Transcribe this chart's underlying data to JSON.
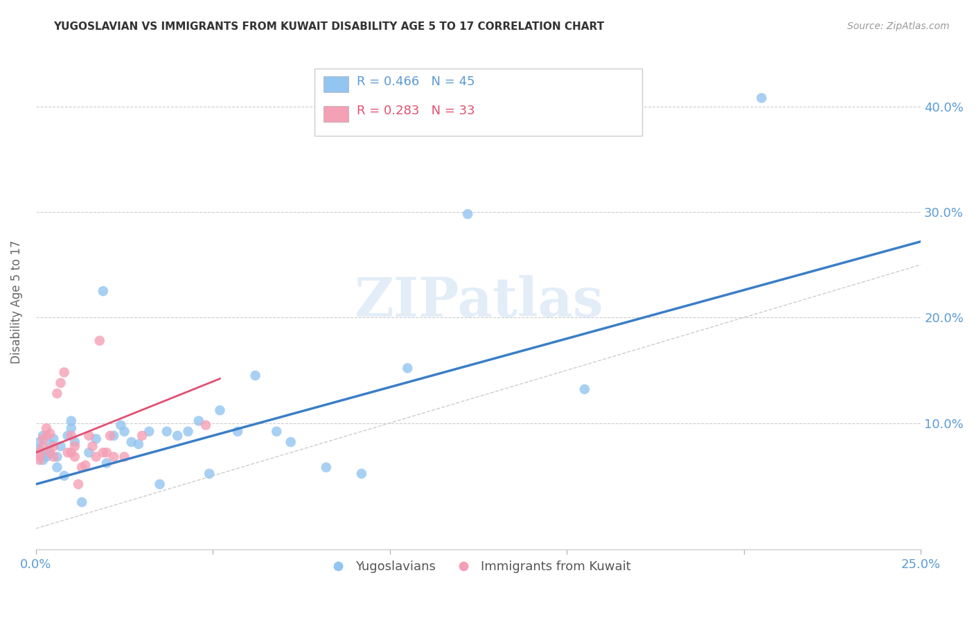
{
  "title": "YUGOSLAVIAN VS IMMIGRANTS FROM KUWAIT DISABILITY AGE 5 TO 17 CORRELATION CHART",
  "source": "Source: ZipAtlas.com",
  "ylabel": "Disability Age 5 to 17",
  "xlim": [
    0.0,
    0.25
  ],
  "ylim": [
    -0.02,
    0.45
  ],
  "xtick_positions": [
    0.0,
    0.05,
    0.1,
    0.15,
    0.2,
    0.25
  ],
  "xtick_labels": [
    "0.0%",
    "",
    "",
    "",
    "",
    "25.0%"
  ],
  "ytick_positions": [
    0.1,
    0.2,
    0.3,
    0.4
  ],
  "ytick_labels": [
    "10.0%",
    "20.0%",
    "30.0%",
    "40.0%"
  ],
  "legend_blue_label": "R = 0.466   N = 45",
  "legend_pink_label": "R = 0.283   N = 33",
  "bottom_legend_blue": "Yugoslavians",
  "bottom_legend_pink": "Immigrants from Kuwait",
  "blue_color": "#92C5F0",
  "pink_color": "#F4A0B5",
  "line_blue_color": "#3A7EC6",
  "line_pink_color": "#E05070",
  "axis_label_color": "#5B9BD5",
  "grid_color": "#CCCCCC",
  "watermark_text": "ZIPatlas",
  "blue_scatter_x": [
    0.001,
    0.001,
    0.002,
    0.002,
    0.003,
    0.003,
    0.004,
    0.004,
    0.005,
    0.006,
    0.006,
    0.007,
    0.008,
    0.009,
    0.01,
    0.01,
    0.011,
    0.013,
    0.015,
    0.017,
    0.019,
    0.02,
    0.022,
    0.024,
    0.025,
    0.027,
    0.029,
    0.032,
    0.035,
    0.037,
    0.04,
    0.043,
    0.046,
    0.049,
    0.052,
    0.057,
    0.062,
    0.068,
    0.072,
    0.082,
    0.092,
    0.105,
    0.122,
    0.155,
    0.205
  ],
  "blue_scatter_y": [
    0.075,
    0.082,
    0.065,
    0.088,
    0.072,
    0.068,
    0.08,
    0.071,
    0.085,
    0.068,
    0.058,
    0.078,
    0.05,
    0.088,
    0.095,
    0.102,
    0.082,
    0.025,
    0.072,
    0.085,
    0.225,
    0.062,
    0.088,
    0.098,
    0.092,
    0.082,
    0.08,
    0.092,
    0.042,
    0.092,
    0.088,
    0.092,
    0.102,
    0.052,
    0.112,
    0.092,
    0.145,
    0.092,
    0.082,
    0.058,
    0.052,
    0.152,
    0.298,
    0.132,
    0.408
  ],
  "pink_scatter_x": [
    0.001,
    0.001,
    0.001,
    0.002,
    0.002,
    0.003,
    0.003,
    0.004,
    0.004,
    0.005,
    0.005,
    0.006,
    0.007,
    0.008,
    0.009,
    0.01,
    0.01,
    0.011,
    0.011,
    0.012,
    0.013,
    0.014,
    0.015,
    0.016,
    0.017,
    0.018,
    0.019,
    0.02,
    0.021,
    0.022,
    0.025,
    0.03,
    0.048
  ],
  "pink_scatter_y": [
    0.065,
    0.072,
    0.068,
    0.085,
    0.078,
    0.095,
    0.088,
    0.072,
    0.09,
    0.078,
    0.068,
    0.128,
    0.138,
    0.148,
    0.072,
    0.088,
    0.072,
    0.068,
    0.078,
    0.042,
    0.058,
    0.06,
    0.088,
    0.078,
    0.068,
    0.178,
    0.072,
    0.072,
    0.088,
    0.068,
    0.068,
    0.088,
    0.098
  ],
  "blue_line_x": [
    0.0,
    0.25
  ],
  "blue_line_y": [
    0.042,
    0.272
  ],
  "pink_line_x": [
    0.0,
    0.052
  ],
  "pink_line_y": [
    0.072,
    0.142
  ],
  "diag_line_x": [
    0.0,
    0.25
  ],
  "diag_line_y": [
    0.0,
    0.25
  ],
  "bg_color": "#FFFFFF"
}
